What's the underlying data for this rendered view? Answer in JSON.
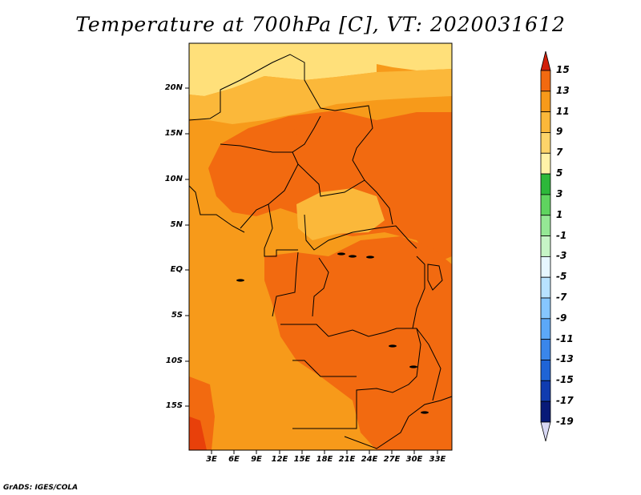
{
  "title": "Temperature at 700hPa [C], VT: 2020031612",
  "credit": "GrADS: IGES/COLA",
  "map": {
    "lat_labels": [
      "20N",
      "15N",
      "10N",
      "5N",
      "EQ",
      "5S",
      "10S",
      "15S"
    ],
    "lon_labels": [
      "3E",
      "6E",
      "9E",
      "12E",
      "15E",
      "18E",
      "21E",
      "24E",
      "27E",
      "30E",
      "33E"
    ],
    "field_colors": {
      "c5_7": "#ffe07a",
      "c7_9": "#fbb83a",
      "c9_11": "#f79a1a",
      "c11_13": "#f26a10",
      "c13_15": "#e8400a"
    },
    "border_color": "#000000"
  },
  "colorbar": {
    "labels": [
      "15",
      "13",
      "11",
      "9",
      "7",
      "5",
      "3",
      "1",
      "-1",
      "-3",
      "-5",
      "-7",
      "-9",
      "-11",
      "-13",
      "-15",
      "-17",
      "-19"
    ],
    "colors": [
      "#e8300a",
      "#f26a10",
      "#f79a1a",
      "#fbb83a",
      "#fdd46a",
      "#fff2a8",
      "#2db83a",
      "#5fd45f",
      "#95e895",
      "#c6f4c6",
      "#e6f6ff",
      "#b8e2ff",
      "#86c6ff",
      "#5ca8f8",
      "#3a86ea",
      "#1f64d6",
      "#103cb0",
      "#081a78"
    ],
    "top_arrow_color": "#d2200a",
    "bottom_arrow_color": "#d8d8f4"
  }
}
